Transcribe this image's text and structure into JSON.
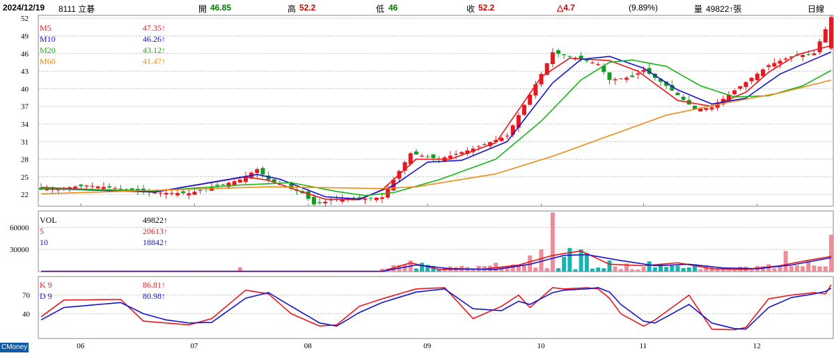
{
  "header": {
    "date": "2024/12/19",
    "stock": "8111 立碁",
    "open_label": "開",
    "open_value": "46.85",
    "high_label": "高",
    "high_value": "52.2",
    "low_label": "低",
    "low_value": "46",
    "close_label": "收",
    "close_value": "52.2",
    "change": "△4.7",
    "change_pct": "(9.89%)",
    "volume_label": "量",
    "volume_value": "49822↑張",
    "period": "日線"
  },
  "brand": "CMoney",
  "colors": {
    "up": "#e8181e",
    "down": "#169a22",
    "ma5": "#e8181e",
    "ma10": "#1414d0",
    "ma20": "#18b418",
    "ma60": "#f08a18",
    "vol_up": "#f08c98",
    "vol_down": "#18b4b4",
    "k": "#e8181e",
    "d": "#1414d0"
  },
  "chart_data": [
    {
      "type": "candlestick",
      "legend": [
        {
          "name": "M5",
          "value": "47.35↑"
        },
        {
          "name": "M10",
          "value": "46.26↑"
        },
        {
          "name": "M20",
          "value": "43.12↑"
        },
        {
          "name": "M60",
          "value": "41.47↑"
        }
      ],
      "y_ticks": [
        "52",
        "49",
        "46",
        "43",
        "40",
        "37",
        "34",
        "31",
        "28",
        "25",
        "22"
      ],
      "ylim": [
        20,
        52.5
      ],
      "x_ticks": [
        "06",
        "07",
        "08",
        "09",
        "10",
        "11",
        "12"
      ],
      "x_tick_index": [
        7,
        27,
        47,
        68,
        88,
        106,
        126
      ],
      "n": 140,
      "keypoints": {
        "index": [
          0,
          8,
          12,
          20,
          26,
          35,
          38,
          40,
          46,
          48,
          52,
          55,
          60,
          65,
          70,
          76,
          82,
          88,
          90,
          95,
          98,
          100,
          104,
          106,
          110,
          115,
          118,
          121,
          128,
          132,
          136,
          139
        ],
        "close": [
          22.8,
          23.5,
          23.2,
          22.3,
          22.2,
          24.5,
          26.3,
          24.5,
          22.2,
          20.3,
          21.2,
          21.2,
          21.5,
          29.0,
          28.0,
          29.8,
          32.0,
          42.5,
          46.2,
          45.0,
          44.2,
          41.5,
          42.0,
          43.2,
          40.5,
          36.5,
          36.8,
          39.0,
          44.0,
          45.5,
          46.0,
          52.2
        ]
      },
      "ma_keypoints": {
        "M5": {
          "index": [
            0,
            20,
            36,
            40,
            46,
            50,
            56,
            60,
            66,
            72,
            80,
            88,
            93,
            100,
            105,
            112,
            118,
            124,
            128,
            133,
            139
          ],
          "value": [
            23.2,
            22.4,
            25.0,
            24.4,
            22.4,
            21.2,
            21.1,
            22.8,
            28.0,
            28.0,
            30.8,
            42.0,
            45.2,
            44.8,
            43.0,
            38.0,
            37.0,
            39.4,
            42.8,
            45.8,
            47.35
          ]
        },
        "M10": {
          "index": [
            0,
            20,
            38,
            42,
            50,
            56,
            62,
            68,
            74,
            82,
            90,
            95,
            100,
            106,
            112,
            118,
            124,
            130,
            139
          ],
          "value": [
            23.0,
            22.4,
            25.4,
            24.6,
            21.6,
            21.2,
            23.5,
            27.5,
            27.8,
            31.0,
            41.0,
            45.0,
            45.5,
            43.5,
            39.8,
            37.4,
            38.4,
            42.5,
            46.26
          ]
        },
        "M20": {
          "index": [
            0,
            20,
            35,
            44,
            52,
            57,
            62,
            70,
            80,
            88,
            95,
            100,
            104,
            110,
            116,
            122,
            128,
            134,
            139
          ],
          "value": [
            23.0,
            22.6,
            23.6,
            24.0,
            22.5,
            21.8,
            22.3,
            24.5,
            28.0,
            34.5,
            41.5,
            44.5,
            44.9,
            43.8,
            40.5,
            38.6,
            38.8,
            40.5,
            43.12
          ]
        },
        "M60": {
          "index": [
            0,
            20,
            40,
            60,
            66,
            80,
            90,
            100,
            110,
            120,
            130,
            139
          ],
          "value": [
            22.1,
            22.7,
            23.3,
            23.0,
            23.3,
            25.5,
            28.5,
            32.0,
            35.5,
            37.5,
            39.3,
            41.47
          ]
        }
      }
    },
    {
      "type": "bar",
      "name": "volume",
      "legend": [
        {
          "name": "VOL",
          "value": "49822↑"
        },
        {
          "name": "5",
          "value": "20613↑"
        },
        {
          "name": "10",
          "value": "18842↑"
        }
      ],
      "y_ticks": [
        "60000",
        "30000"
      ],
      "ylim": [
        0,
        82000
      ],
      "spikes": {
        "index": [
          35,
          65,
          67,
          80,
          86,
          88,
          90,
          92,
          93,
          95,
          96,
          100,
          103,
          107,
          109,
          112,
          115,
          128,
          131,
          135,
          139
        ],
        "value": [
          6000,
          15000,
          12000,
          12000,
          22000,
          30000,
          80000,
          20000,
          32000,
          30000,
          25000,
          15000,
          11000,
          14000,
          10000,
          8000,
          10000,
          10000,
          28000,
          14000,
          49822
        ]
      },
      "ma_keypoints": {
        "5": {
          "index": [
            0,
            60,
            65,
            70,
            78,
            84,
            90,
            95,
            100,
            106,
            112,
            118,
            124,
            130,
            134,
            139
          ],
          "value": [
            300,
            300,
            12000,
            3000,
            3500,
            9000,
            22000,
            28000,
            10000,
            8000,
            12000,
            4000,
            3000,
            8000,
            14000,
            20613
          ]
        },
        "10": {
          "index": [
            0,
            60,
            66,
            72,
            80,
            86,
            92,
            96,
            102,
            108,
            114,
            120,
            126,
            132,
            139
          ],
          "value": [
            500,
            500,
            9000,
            4000,
            3000,
            10000,
            22000,
            23000,
            15000,
            8000,
            10000,
            5000,
            4000,
            9000,
            18842
          ]
        }
      }
    },
    {
      "type": "line",
      "name": "KD",
      "legend": [
        {
          "name": "K 9",
          "value": "86.81↑"
        },
        {
          "name": "D 9",
          "value": "80.98↑"
        }
      ],
      "y_ticks": [
        "70",
        "40"
      ],
      "ylim": [
        0,
        100
      ],
      "series": [
        {
          "name": "K 9",
          "index": [
            0,
            4,
            14,
            18,
            22,
            26,
            30,
            36,
            40,
            44,
            49,
            52,
            56,
            60,
            66,
            71,
            76,
            81,
            84,
            86,
            90,
            92,
            96,
            98,
            100,
            102,
            106,
            108,
            114,
            118,
            122,
            124,
            128,
            132,
            136,
            138,
            139
          ],
          "value": [
            35,
            62,
            63,
            28,
            25,
            22,
            32,
            78,
            72,
            40,
            20,
            22,
            52,
            64,
            80,
            82,
            32,
            52,
            70,
            50,
            82,
            80,
            82,
            80,
            65,
            40,
            20,
            30,
            70,
            15,
            14,
            18,
            64,
            70,
            74,
            72,
            86.81
          ]
        },
        {
          "name": "D 9",
          "index": [
            0,
            4,
            14,
            18,
            22,
            26,
            30,
            36,
            40,
            44,
            49,
            52,
            56,
            60,
            66,
            71,
            76,
            81,
            84,
            86,
            90,
            92,
            96,
            98,
            100,
            102,
            106,
            108,
            114,
            118,
            122,
            124,
            128,
            132,
            136,
            138,
            139
          ],
          "value": [
            30,
            50,
            58,
            40,
            30,
            25,
            26,
            65,
            74,
            52,
            25,
            20,
            42,
            58,
            75,
            80,
            48,
            45,
            60,
            55,
            74,
            78,
            80,
            82,
            75,
            55,
            28,
            25,
            55,
            25,
            16,
            15,
            50,
            66,
            72,
            76,
            80.98
          ]
        }
      ]
    }
  ]
}
